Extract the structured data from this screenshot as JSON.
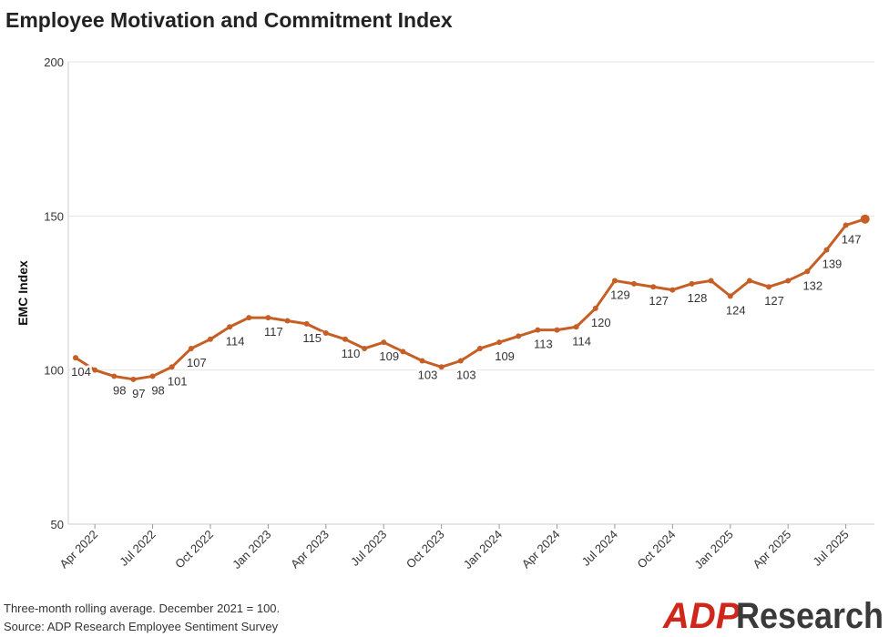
{
  "chart_data": {
    "type": "line",
    "title": "Employee Motivation and Commitment Index",
    "y_label": "EMC Index",
    "notes": [
      "Three-month rolling average. December 2021 = 100.",
      "Source: ADP Research Employee Sentiment Survey"
    ],
    "logo": {
      "brand": "ADP",
      "text": "Research"
    },
    "categories": [
      "Mar 2022",
      "Apr 2022",
      "May 2022",
      "Jun 2022",
      "Jul 2022",
      "Aug 2022",
      "Sep 2022",
      "Oct 2022",
      "Nov 2022",
      "Dec 2022",
      "Jan 2023",
      "Feb 2023",
      "Mar 2023",
      "Apr 2023",
      "May 2023",
      "Jun 2023",
      "Jul 2023",
      "Aug 2023",
      "Sep 2023",
      "Oct 2023",
      "Nov 2023",
      "Dec 2023",
      "Jan 2024",
      "Feb 2024",
      "Mar 2024",
      "Apr 2024",
      "May 2024",
      "Jun 2024",
      "Jul 2024",
      "Aug 2024",
      "Sep 2024",
      "Oct 2024",
      "Nov 2024",
      "Dec 2024",
      "Jan 2025",
      "Feb 2025",
      "Mar 2025",
      "Apr 2025",
      "May 2025",
      "Jun 2025",
      "Jul 2025",
      "Aug 2025"
    ],
    "series": [
      {
        "name": "EMC Index",
        "color": "#c65f26",
        "values": [
          104,
          100,
          98,
          97,
          98,
          101,
          107,
          110,
          114,
          117,
          117,
          116,
          115,
          112,
          110,
          107,
          109,
          106,
          103,
          101,
          103,
          107,
          109,
          111,
          113,
          113,
          114,
          120,
          129,
          128,
          127,
          126,
          128,
          129,
          124,
          129,
          127,
          129,
          132,
          139,
          147,
          149
        ],
        "value_labels": [
          "104",
          null,
          "98",
          "97",
          "98",
          "101",
          "107",
          null,
          "114",
          null,
          "117",
          null,
          "115",
          null,
          "110",
          null,
          "109",
          null,
          "103",
          null,
          "103",
          null,
          "109",
          null,
          "113",
          null,
          "114",
          "120",
          "129",
          null,
          "127",
          null,
          "128",
          null,
          "124",
          null,
          "127",
          null,
          "132",
          "139",
          "147",
          null
        ]
      }
    ],
    "xticks": [
      "Apr 2022",
      "Jul 2022",
      "Oct 2022",
      "Jan 2023",
      "Apr 2023",
      "Jul 2023",
      "Oct 2023",
      "Jan 2024",
      "Apr 2024",
      "Jul 2024",
      "Oct 2024",
      "Jan 2025",
      "Apr 2025",
      "Jul 2025"
    ],
    "ylim": [
      50,
      200
    ],
    "yticks": [
      50,
      100,
      150,
      200
    ],
    "grid": true
  }
}
